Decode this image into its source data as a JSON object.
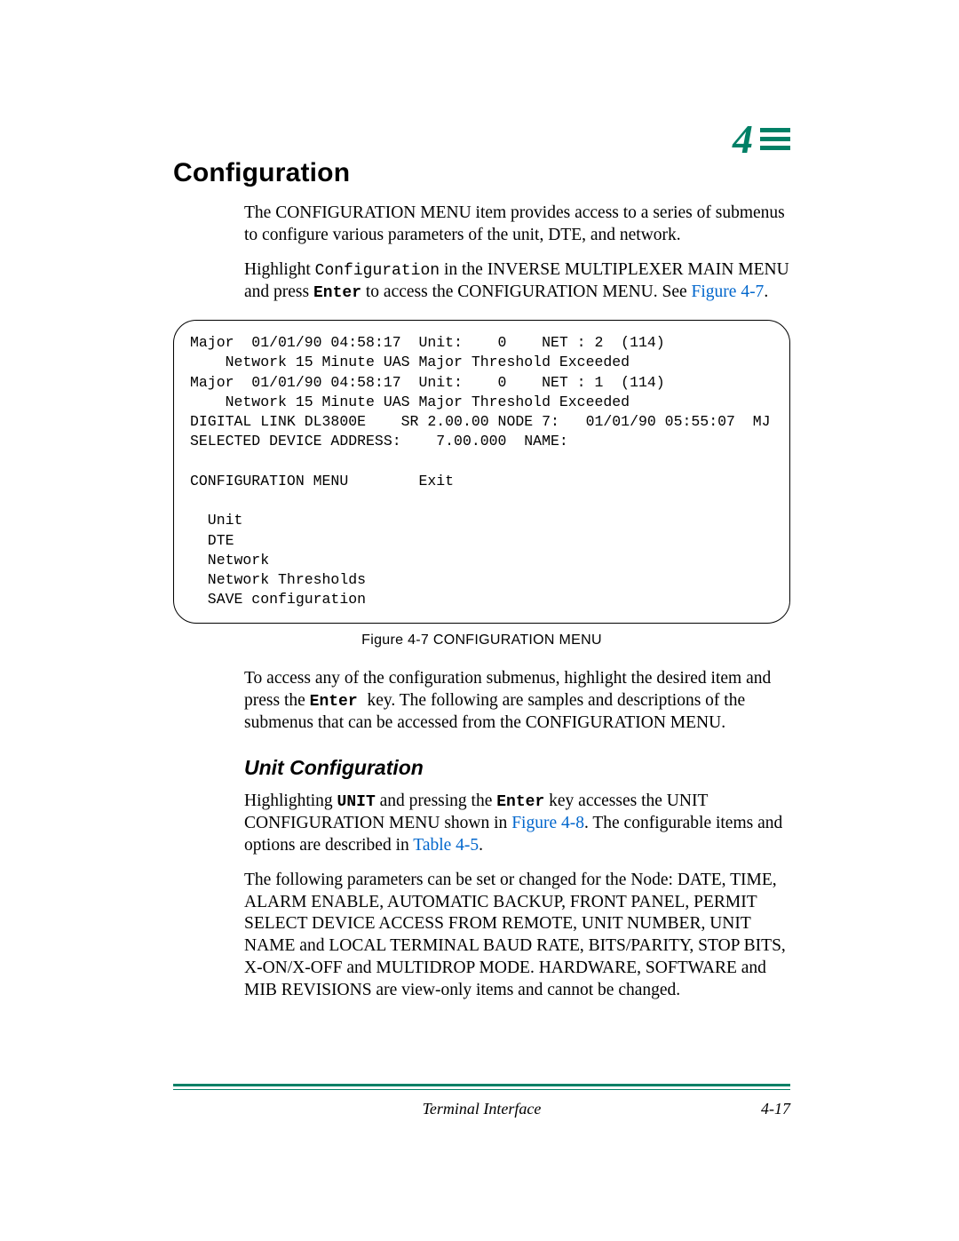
{
  "chapter": {
    "number": "4"
  },
  "colors": {
    "accent": "#008066",
    "link": "#0066cc",
    "text": "#000000",
    "bg": "#ffffff"
  },
  "heading": "Configuration",
  "intro": {
    "p1": "The CONFIGURATION MENU item provides access to a series of submenus to configure various parameters of the unit, DTE, and network.",
    "p2_a": "Highlight ",
    "p2_code": "Configuration",
    "p2_b": " in the INVERSE MULTIPLEXER MAIN MENU and press ",
    "p2_enter": "Enter",
    "p2_c": " to access the CONFIGURATION MENU. See ",
    "p2_link": "Figure 4-7",
    "p2_d": "."
  },
  "terminal": "Major  01/01/90 04:58:17  Unit:    0    NET : 2  (114)\n    Network 15 Minute UAS Major Threshold Exceeded\nMajor  01/01/90 04:58:17  Unit:    0    NET : 1  (114)\n    Network 15 Minute UAS Major Threshold Exceeded\nDIGITAL LINK DL3800E    SR 2.00.00 NODE 7:   01/01/90 05:55:07  MJ\nSELECTED DEVICE ADDRESS:    7.00.000  NAME:\n\nCONFIGURATION MENU        Exit\n\n  Unit\n  DTE\n  Network\n  Network Thresholds\n  SAVE configuration",
  "figure_caption": "Figure 4-7   CONFIGURATION MENU",
  "after_fig": {
    "a": "To access any of the configuration submenus, highlight the desired item and press the ",
    "enter": "Enter ",
    "b": " key. The following are samples and descriptions of the submenus that can be accessed from the CONFIGURATION MENU."
  },
  "subheading": "Unit Configuration",
  "unit": {
    "p1_a": "Highlighting ",
    "p1_unit": "UNIT",
    "p1_b": " and pressing the ",
    "p1_enter": "Enter",
    "p1_c": " key accesses the UNIT CONFIGURATION MENU shown in ",
    "p1_link1": "Figure 4-8",
    "p1_d": ". The configurable items and options are described in ",
    "p1_link2": "Table 4-5",
    "p1_e": ".",
    "p2": "The following parameters can be set or changed for the Node: DATE, TIME, ALARM ENABLE, AUTOMATIC BACKUP, FRONT PANEL, PERMIT SELECT DEVICE ACCESS FROM REMOTE, UNIT NUMBER, UNIT NAME and LOCAL TERMINAL BAUD RATE, BITS/PARITY, STOP BITS, X-ON/X-OFF and MULTIDROP MODE. HARDWARE, SOFTWARE and MIB REVISIONS are view-only items and cannot be changed."
  },
  "footer": {
    "center": "Terminal Interface",
    "right": "4-17"
  }
}
